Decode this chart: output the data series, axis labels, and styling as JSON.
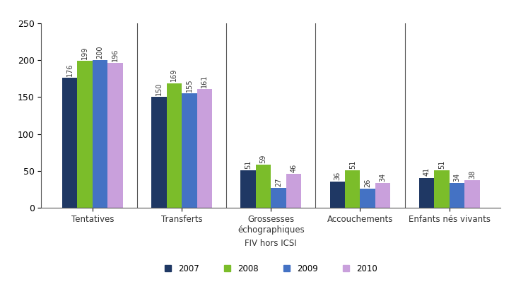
{
  "categories": [
    "Tentatives",
    "Transferts",
    "Grossesses\néchographiques",
    "Accouchements",
    "Enfants nés vivants"
  ],
  "years": [
    "2007",
    "2008",
    "2009",
    "2010"
  ],
  "values": {
    "2007": [
      176,
      150,
      51,
      36,
      41
    ],
    "2008": [
      199,
      169,
      59,
      51,
      51
    ],
    "2009": [
      200,
      155,
      27,
      26,
      34
    ],
    "2010": [
      196,
      161,
      46,
      34,
      38
    ]
  },
  "colors": {
    "2007": "#1F3864",
    "2008": "#7BBD2A",
    "2009": "#4472C4",
    "2010": "#C9A0DC"
  },
  "xlabel": "FIV hors ICSI",
  "ylim": [
    0,
    250
  ],
  "yticks": [
    0,
    50,
    100,
    150,
    200,
    250
  ],
  "bar_width": 0.17,
  "value_fontsize": 7.0,
  "legend_fontsize": 8.5,
  "axis_fontsize": 8.5,
  "tick_fontsize": 9
}
